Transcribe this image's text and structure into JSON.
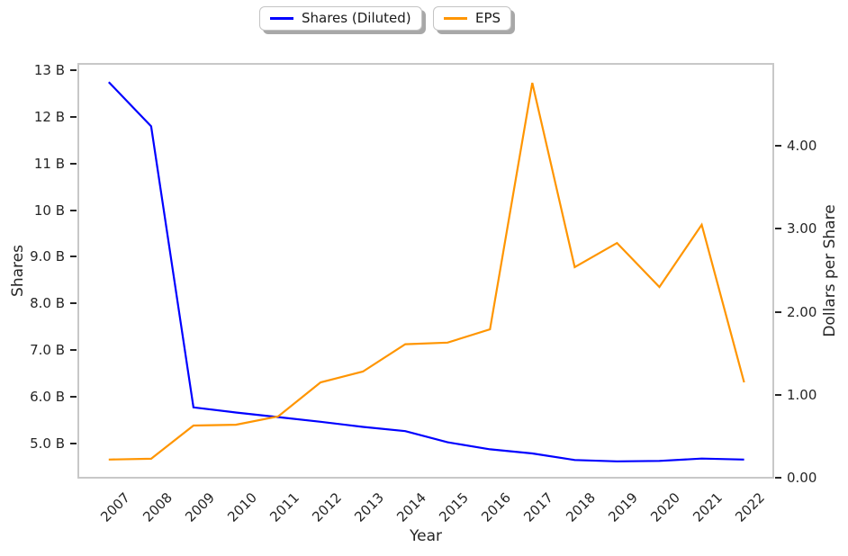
{
  "figure": {
    "background": "#ffffff",
    "text_color": "#262626",
    "frame_color": "#c8c8c8"
  },
  "legend": {
    "position": "top-center",
    "items": [
      {
        "label": "Shares (Diluted)",
        "color": "#0000ff"
      },
      {
        "label": "EPS",
        "color": "#ff9500"
      }
    ]
  },
  "chart_data": {
    "type": "line",
    "title": "",
    "xlabel": "Year",
    "ylabel_left": "Shares",
    "ylabel_right": "Dollars per Share",
    "x": [
      2007,
      2008,
      2009,
      2010,
      2011,
      2012,
      2013,
      2014,
      2015,
      2016,
      2017,
      2018,
      2019,
      2020,
      2021,
      2022
    ],
    "xtick_labels": [
      "2007",
      "2008",
      "2009",
      "2010",
      "2011",
      "2012",
      "2013",
      "2014",
      "2015",
      "2016",
      "2017",
      "2018",
      "2019",
      "2020",
      "2021",
      "2022"
    ],
    "series": [
      {
        "name": "Shares (Diluted)",
        "yaxis": "left",
        "color": "#0000ff",
        "units": "billions of shares",
        "values": [
          12.75,
          11.8,
          5.77,
          5.66,
          5.56,
          5.46,
          5.35,
          5.26,
          5.02,
          4.87,
          4.78,
          4.64,
          4.61,
          4.62,
          4.67,
          4.65
        ]
      },
      {
        "name": "EPS",
        "yaxis": "right",
        "color": "#ff9500",
        "units": "dollars per share",
        "values": [
          0.22,
          0.23,
          0.63,
          0.64,
          0.74,
          1.15,
          1.28,
          1.61,
          1.63,
          1.79,
          4.76,
          2.54,
          2.83,
          2.3,
          3.05,
          1.15
        ]
      }
    ],
    "yticks_left_labels": [
      "13 B",
      "12 B",
      "11 B",
      "10 B",
      "9.0 B",
      "8.0 B",
      "7.0 B",
      "6.0 B",
      "5.0 B"
    ],
    "yticks_left_values": [
      13,
      12,
      11,
      10,
      9,
      8,
      7,
      6,
      5
    ],
    "yticks_right_labels": [
      "4.00",
      "3.00",
      "2.00",
      "1.00",
      "0.00"
    ],
    "yticks_right_values": [
      4,
      3,
      2,
      1,
      0
    ],
    "xlim": [
      2006.26,
      2022.71
    ],
    "ylim_left": [
      4.24,
      13.16
    ],
    "ylim_right": [
      -0.01,
      5.0
    ],
    "grid": false,
    "legend_position": "top-center"
  }
}
